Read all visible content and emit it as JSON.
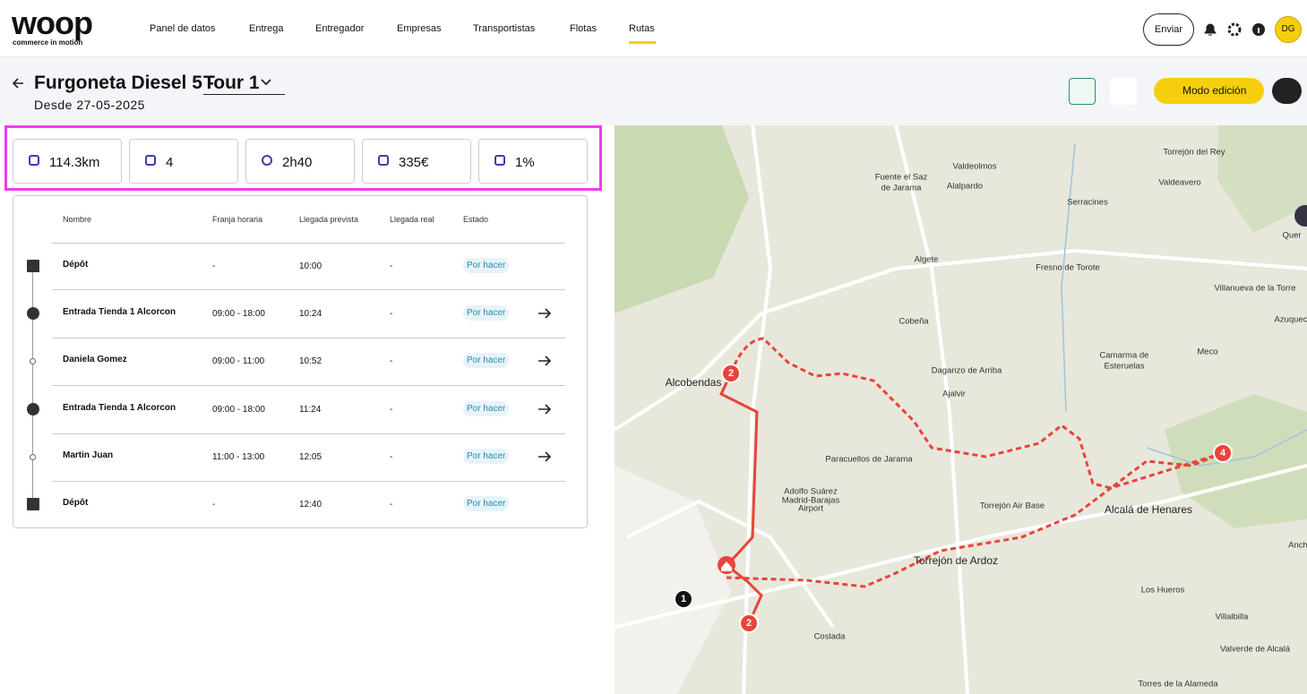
{
  "nav": {
    "logo": "woop",
    "tagline": "commerce in motion",
    "items": [
      "Panel de datos",
      "Entrega",
      "Entregador",
      "Empresas",
      "Transportistas",
      "Flotas",
      "Rutas"
    ],
    "send": "Enviar",
    "avatar": "DG"
  },
  "header": {
    "title": "Furgoneta Diesel 5 -",
    "tour": "Tour 1",
    "since": "Desde 27-05-2025",
    "edit": "Modo edición"
  },
  "stats": [
    "114.3km",
    "4",
    "2h40",
    "335€",
    "1%"
  ],
  "table": {
    "columns": [
      "Nombre",
      "Franja horaria",
      "Llegada prevista",
      "Llegada real",
      "Estado"
    ],
    "rows": [
      [
        "Dépôt",
        "-",
        "10:00",
        "-",
        "Por hacer"
      ],
      [
        "Entrada Tienda 1 Alcorcon",
        "09:00 - 18:00",
        "10:24",
        "-",
        "Por hacer"
      ],
      [
        "Daniela Gomez",
        "09:00 - 11:00",
        "10:52",
        "-",
        "Por hacer"
      ],
      [
        "Entrada Tienda 1 Alcorcon",
        "09:00 - 18:00",
        "11:24",
        "-",
        "Por hacer"
      ],
      [
        "Martin Juan",
        "11:00 - 13:00",
        "12:05",
        "-",
        "Por hacer"
      ],
      [
        "Dépôt",
        "-",
        "12:40",
        "-",
        "Por hacer"
      ]
    ]
  },
  "map": {
    "labels": [
      "Valdeolmos",
      "Fuente el Saz",
      "de Jarama",
      "Alalpardo",
      "Torrejón del Rey",
      "Valdeavero",
      "Serracines",
      "Quer",
      "Algete",
      "Fresno de Torote",
      "Villanueva de la Torre",
      "Cobeña",
      "Azuquec",
      "Meco",
      "Camarma de",
      "Esteruelas",
      "Daganzo de Arriba",
      "Ajalvir",
      "Alcobendas",
      "Paracuellos de Jarama",
      "Adolfo Suárez",
      "Madrid-Barajas",
      "Airport",
      "Torrejón Air Base",
      "Alcalá de Henares",
      "Torrejón de Ardoz",
      "Los Hueros",
      "Villalbilla",
      "Coslada",
      "Valverde de Alcalá",
      "Torres de la Alameda",
      "Anch"
    ],
    "markers": [
      "2",
      "2",
      "1",
      "4"
    ]
  }
}
